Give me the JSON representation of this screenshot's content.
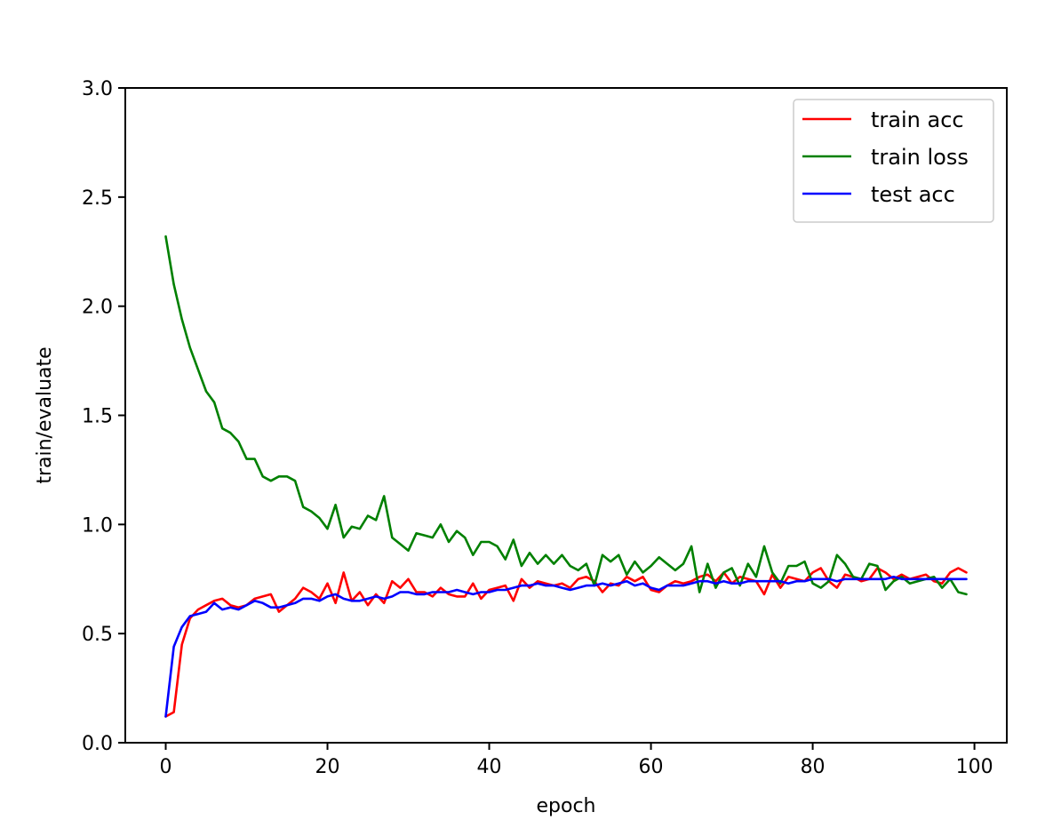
{
  "chart_data": {
    "type": "line",
    "title": "",
    "xlabel": "epoch",
    "ylabel": "train/evaluate",
    "xlim": [
      -5,
      104
    ],
    "ylim": [
      0.0,
      3.0
    ],
    "xticks": [
      0,
      20,
      40,
      60,
      80,
      100
    ],
    "yticks": [
      0.0,
      0.5,
      1.0,
      1.5,
      2.0,
      2.5,
      3.0
    ],
    "xtick_labels": [
      "0",
      "20",
      "40",
      "60",
      "80",
      "100"
    ],
    "ytick_labels": [
      "0.0",
      "0.5",
      "1.0",
      "1.5",
      "2.0",
      "2.5",
      "3.0"
    ],
    "grid": false,
    "legend_position": "top-right",
    "x": [
      0,
      1,
      2,
      3,
      4,
      5,
      6,
      7,
      8,
      9,
      10,
      11,
      12,
      13,
      14,
      15,
      16,
      17,
      18,
      19,
      20,
      21,
      22,
      23,
      24,
      25,
      26,
      27,
      28,
      29,
      30,
      31,
      32,
      33,
      34,
      35,
      36,
      37,
      38,
      39,
      40,
      41,
      42,
      43,
      44,
      45,
      46,
      47,
      48,
      49,
      50,
      51,
      52,
      53,
      54,
      55,
      56,
      57,
      58,
      59,
      60,
      61,
      62,
      63,
      64,
      65,
      66,
      67,
      68,
      69,
      70,
      71,
      72,
      73,
      74,
      75,
      76,
      77,
      78,
      79,
      80,
      81,
      82,
      83,
      84,
      85,
      86,
      87,
      88,
      89,
      90,
      91,
      92,
      93,
      94,
      95,
      96,
      97,
      98,
      99
    ],
    "series": [
      {
        "name": "train acc",
        "color": "#ff0000",
        "values": [
          0.12,
          0.14,
          0.45,
          0.57,
          0.61,
          0.63,
          0.65,
          0.66,
          0.63,
          0.62,
          0.63,
          0.66,
          0.67,
          0.68,
          0.6,
          0.63,
          0.66,
          0.71,
          0.69,
          0.66,
          0.73,
          0.64,
          0.78,
          0.65,
          0.69,
          0.63,
          0.68,
          0.64,
          0.74,
          0.71,
          0.75,
          0.69,
          0.69,
          0.67,
          0.71,
          0.68,
          0.67,
          0.67,
          0.73,
          0.66,
          0.7,
          0.71,
          0.72,
          0.65,
          0.75,
          0.71,
          0.74,
          0.73,
          0.72,
          0.73,
          0.71,
          0.75,
          0.76,
          0.74,
          0.69,
          0.73,
          0.72,
          0.76,
          0.74,
          0.76,
          0.7,
          0.69,
          0.72,
          0.74,
          0.73,
          0.74,
          0.76,
          0.77,
          0.74,
          0.78,
          0.73,
          0.76,
          0.75,
          0.74,
          0.68,
          0.77,
          0.71,
          0.76,
          0.75,
          0.74,
          0.78,
          0.8,
          0.74,
          0.71,
          0.77,
          0.76,
          0.74,
          0.75,
          0.8,
          0.78,
          0.75,
          0.77,
          0.75,
          0.76,
          0.77,
          0.74,
          0.73,
          0.78,
          0.8,
          0.78
        ]
      },
      {
        "name": "train loss",
        "color": "#008000",
        "values": [
          2.32,
          2.1,
          1.94,
          1.81,
          1.71,
          1.61,
          1.56,
          1.44,
          1.42,
          1.38,
          1.3,
          1.3,
          1.22,
          1.2,
          1.22,
          1.22,
          1.2,
          1.08,
          1.06,
          1.03,
          0.98,
          1.09,
          0.94,
          0.99,
          0.98,
          1.04,
          1.02,
          1.13,
          0.94,
          0.91,
          0.88,
          0.96,
          0.95,
          0.94,
          1.0,
          0.92,
          0.97,
          0.94,
          0.86,
          0.92,
          0.92,
          0.9,
          0.84,
          0.93,
          0.81,
          0.87,
          0.82,
          0.86,
          0.82,
          0.86,
          0.81,
          0.79,
          0.82,
          0.72,
          0.86,
          0.83,
          0.86,
          0.77,
          0.83,
          0.78,
          0.81,
          0.85,
          0.82,
          0.79,
          0.82,
          0.9,
          0.69,
          0.82,
          0.71,
          0.78,
          0.8,
          0.72,
          0.82,
          0.76,
          0.9,
          0.78,
          0.73,
          0.81,
          0.81,
          0.83,
          0.73,
          0.71,
          0.74,
          0.86,
          0.82,
          0.76,
          0.75,
          0.82,
          0.81,
          0.7,
          0.74,
          0.76,
          0.73,
          0.74,
          0.75,
          0.76,
          0.71,
          0.75,
          0.69,
          0.68
        ]
      },
      {
        "name": "test acc",
        "color": "#0000ff",
        "values": [
          0.12,
          0.44,
          0.53,
          0.58,
          0.59,
          0.6,
          0.64,
          0.61,
          0.62,
          0.61,
          0.63,
          0.65,
          0.64,
          0.62,
          0.62,
          0.63,
          0.64,
          0.66,
          0.66,
          0.65,
          0.67,
          0.68,
          0.66,
          0.65,
          0.65,
          0.66,
          0.67,
          0.66,
          0.67,
          0.69,
          0.69,
          0.68,
          0.68,
          0.69,
          0.69,
          0.69,
          0.7,
          0.69,
          0.68,
          0.69,
          0.69,
          0.7,
          0.7,
          0.71,
          0.72,
          0.72,
          0.73,
          0.72,
          0.72,
          0.71,
          0.7,
          0.71,
          0.72,
          0.72,
          0.73,
          0.72,
          0.73,
          0.74,
          0.72,
          0.73,
          0.71,
          0.7,
          0.72,
          0.72,
          0.72,
          0.73,
          0.74,
          0.74,
          0.73,
          0.74,
          0.73,
          0.73,
          0.74,
          0.74,
          0.74,
          0.74,
          0.74,
          0.73,
          0.74,
          0.74,
          0.75,
          0.75,
          0.75,
          0.74,
          0.75,
          0.75,
          0.75,
          0.75,
          0.75,
          0.75,
          0.76,
          0.75,
          0.75,
          0.75,
          0.75,
          0.75,
          0.75,
          0.75,
          0.75,
          0.75
        ]
      }
    ]
  }
}
